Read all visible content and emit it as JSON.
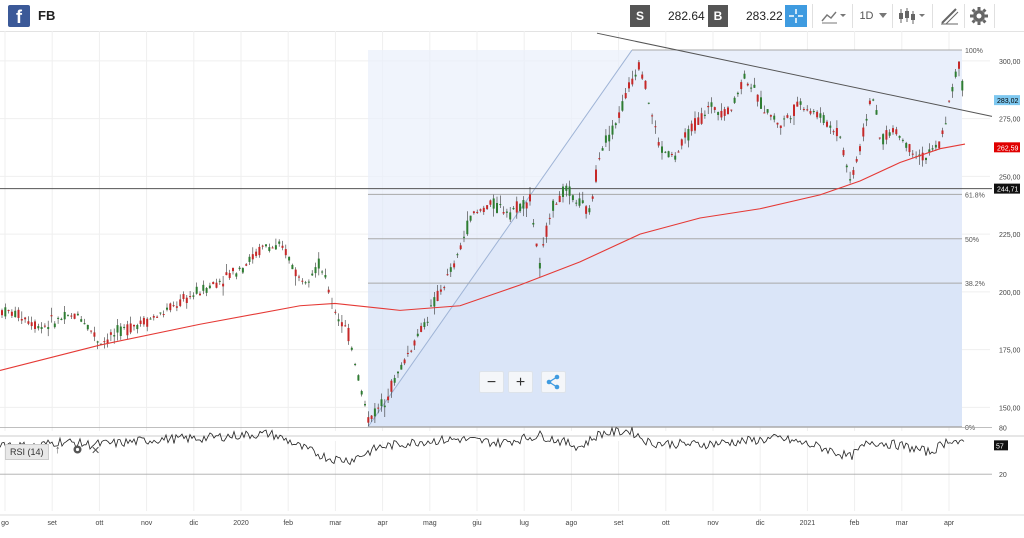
{
  "header": {
    "logo_letter": "f",
    "symbol": "FB",
    "sell_label": "S",
    "sell_price": "282.64",
    "buy_label": "B",
    "buy_price": "283.22",
    "timeframe": "1D",
    "accent_color": "#3f9be0"
  },
  "icons": [
    "facebook-logo-icon",
    "crosshair-icon",
    "chart-type-icon",
    "chevron-down-icon",
    "candlestick-icon",
    "drawing-tool-icon",
    "gear-icon",
    "minus-icon",
    "plus-icon",
    "share-icon",
    "arrow-up-icon",
    "close-icon"
  ],
  "zoom_controls": {
    "minus": "−",
    "plus": "+"
  },
  "rsi": {
    "label": "RSI (14)",
    "value": "57",
    "levels": [
      "80",
      "20"
    ],
    "close_symbol": "✕",
    "up_symbol": "↑"
  },
  "chart_data": {
    "type": "candlestick",
    "price_axis_ticks": [
      "300,00",
      "275,00",
      "250,00",
      "225,00",
      "200,00",
      "175,00",
      "150,00"
    ],
    "price_axis_values": [
      300,
      275,
      250,
      225,
      200,
      175,
      150
    ],
    "ylim": [
      137,
      312
    ],
    "current_price_label": "283,02",
    "current_price": 283.02,
    "ma_label": "262,59",
    "ma_value": 262.59,
    "line_label": "244,71",
    "line_value": 244.71,
    "time_axis_labels": [
      "go",
      "set",
      "ott",
      "nov",
      "dic",
      "2020",
      "feb",
      "mar",
      "apr",
      "mag",
      "giu",
      "lug",
      "ago",
      "set",
      "ott",
      "nov",
      "dic",
      "2021",
      "feb",
      "mar",
      "apr"
    ],
    "fibonacci": {
      "levels": [
        {
          "label": "100%",
          "value": 304.7
        },
        {
          "label": "61.8%",
          "value": 242.2
        },
        {
          "label": "50%",
          "value": 223.0
        },
        {
          "label": "38.2%",
          "value": 203.8
        },
        {
          "label": "0%",
          "value": 141.6
        }
      ]
    },
    "price_series_keypoints": [
      [
        0,
        192
      ],
      [
        20,
        190
      ],
      [
        40,
        185
      ],
      [
        60,
        188
      ],
      [
        80,
        190
      ],
      [
        100,
        178
      ],
      [
        130,
        185
      ],
      [
        160,
        190
      ],
      [
        190,
        198
      ],
      [
        220,
        205
      ],
      [
        245,
        212
      ],
      [
        265,
        220
      ],
      [
        285,
        218
      ],
      [
        300,
        205
      ],
      [
        320,
        212
      ],
      [
        335,
        192
      ],
      [
        350,
        180
      ],
      [
        360,
        160
      ],
      [
        368,
        145
      ],
      [
        380,
        150
      ],
      [
        395,
        162
      ],
      [
        410,
        175
      ],
      [
        425,
        187
      ],
      [
        440,
        200
      ],
      [
        455,
        212
      ],
      [
        470,
        232
      ],
      [
        490,
        238
      ],
      [
        510,
        235
      ],
      [
        530,
        240
      ],
      [
        540,
        210
      ],
      [
        550,
        235
      ],
      [
        565,
        244
      ],
      [
        580,
        238
      ],
      [
        590,
        234
      ],
      [
        600,
        262
      ],
      [
        615,
        272
      ],
      [
        630,
        290
      ],
      [
        640,
        300
      ],
      [
        650,
        280
      ],
      [
        660,
        262
      ],
      [
        675,
        258
      ],
      [
        690,
        270
      ],
      [
        710,
        280
      ],
      [
        730,
        278
      ],
      [
        745,
        294
      ],
      [
        760,
        282
      ],
      [
        780,
        272
      ],
      [
        800,
        282
      ],
      [
        820,
        276
      ],
      [
        840,
        268
      ],
      [
        850,
        248
      ],
      [
        860,
        262
      ],
      [
        872,
        287
      ],
      [
        880,
        266
      ],
      [
        895,
        270
      ],
      [
        910,
        262
      ],
      [
        925,
        258
      ],
      [
        940,
        264
      ],
      [
        950,
        283
      ],
      [
        958,
        299
      ],
      [
        965,
        283
      ]
    ],
    "ma_keypoints": [
      [
        0,
        166
      ],
      [
        100,
        177
      ],
      [
        200,
        186
      ],
      [
        300,
        194
      ],
      [
        335,
        195
      ],
      [
        400,
        192
      ],
      [
        460,
        194
      ],
      [
        520,
        203
      ],
      [
        580,
        213
      ],
      [
        640,
        225
      ],
      [
        700,
        232
      ],
      [
        760,
        236
      ],
      [
        820,
        242
      ],
      [
        860,
        248
      ],
      [
        900,
        256
      ],
      [
        940,
        262
      ],
      [
        965,
        264
      ]
    ],
    "rsi_keypoints": [
      [
        0,
        60
      ],
      [
        30,
        55
      ],
      [
        60,
        62
      ],
      [
        90,
        58
      ],
      [
        120,
        60
      ],
      [
        160,
        65
      ],
      [
        200,
        66
      ],
      [
        240,
        70
      ],
      [
        270,
        72
      ],
      [
        290,
        62
      ],
      [
        300,
        55
      ],
      [
        330,
        40
      ],
      [
        350,
        38
      ],
      [
        380,
        55
      ],
      [
        420,
        62
      ],
      [
        460,
        65
      ],
      [
        500,
        60
      ],
      [
        540,
        70
      ],
      [
        580,
        55
      ],
      [
        600,
        72
      ],
      [
        630,
        76
      ],
      [
        650,
        60
      ],
      [
        700,
        58
      ],
      [
        740,
        62
      ],
      [
        780,
        66
      ],
      [
        820,
        55
      ],
      [
        850,
        42
      ],
      [
        870,
        62
      ],
      [
        900,
        57
      ],
      [
        930,
        48
      ],
      [
        950,
        65
      ],
      [
        965,
        57
      ]
    ]
  }
}
